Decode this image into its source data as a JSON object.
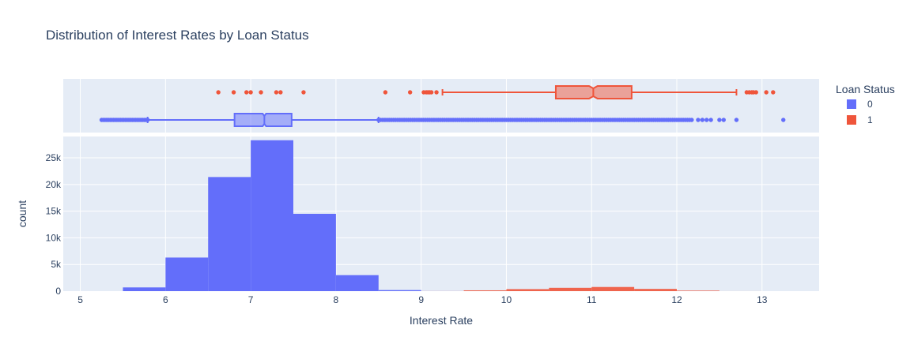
{
  "chart_data": {
    "type": "histogram",
    "title": "Distribution of Interest Rates by Loan Status",
    "xlabel": "Interest Rate",
    "ylabel": "count",
    "xlim": [
      4.8,
      13.67
    ],
    "ylim": [
      0,
      29000
    ],
    "x_ticks": [
      5,
      6,
      7,
      8,
      9,
      10,
      11,
      12,
      13
    ],
    "y_ticks": [
      0,
      5000,
      10000,
      15000,
      20000,
      25000
    ],
    "y_tick_labels": [
      "0",
      "5k",
      "10k",
      "15k",
      "20k",
      "25k"
    ],
    "bin_width": 0.5,
    "barmode": "overlay",
    "grid": true,
    "legend": {
      "title": "Loan Status",
      "placement": "top-right"
    },
    "series": [
      {
        "name": "0",
        "color": "#636efa",
        "bin_starts": [
          5.0,
          5.5,
          6.0,
          6.5,
          7.0,
          7.5,
          8.0,
          8.5,
          9.0
        ],
        "counts": [
          0,
          700,
          6300,
          21400,
          28300,
          14500,
          3000,
          200,
          10
        ],
        "box": {
          "q1": 6.81,
          "median": 7.16,
          "q3": 7.48,
          "whisker_low": 5.79,
          "whisker_high": 8.5,
          "notch_low": 7.14,
          "notch_high": 7.18,
          "outliers_low_range": [
            5.25,
            5.79
          ],
          "outliers_high_range": [
            8.5,
            12.2
          ],
          "outliers_extra": [
            12.25,
            12.3,
            12.35,
            12.4,
            12.5,
            12.55,
            12.7,
            13.25
          ]
        }
      },
      {
        "name": "1",
        "color": "#ef553b",
        "bin_starts": [
          9.0,
          9.5,
          10.0,
          10.5,
          11.0,
          11.5,
          12.0,
          12.5
        ],
        "counts": [
          10,
          150,
          380,
          620,
          780,
          420,
          100,
          5
        ],
        "box": {
          "q1": 10.58,
          "median": 11.02,
          "q3": 11.47,
          "whisker_low": 9.25,
          "whisker_high": 12.7,
          "notch_low": 10.97,
          "notch_high": 11.07,
          "outliers": [
            6.62,
            6.8,
            6.95,
            7.0,
            7.12,
            7.3,
            7.35,
            7.62,
            8.58,
            8.87,
            9.03,
            9.06,
            9.08,
            9.1,
            9.12,
            9.18,
            12.82,
            12.85,
            12.88,
            12.9,
            12.93,
            13.05,
            13.13
          ]
        }
      }
    ]
  }
}
